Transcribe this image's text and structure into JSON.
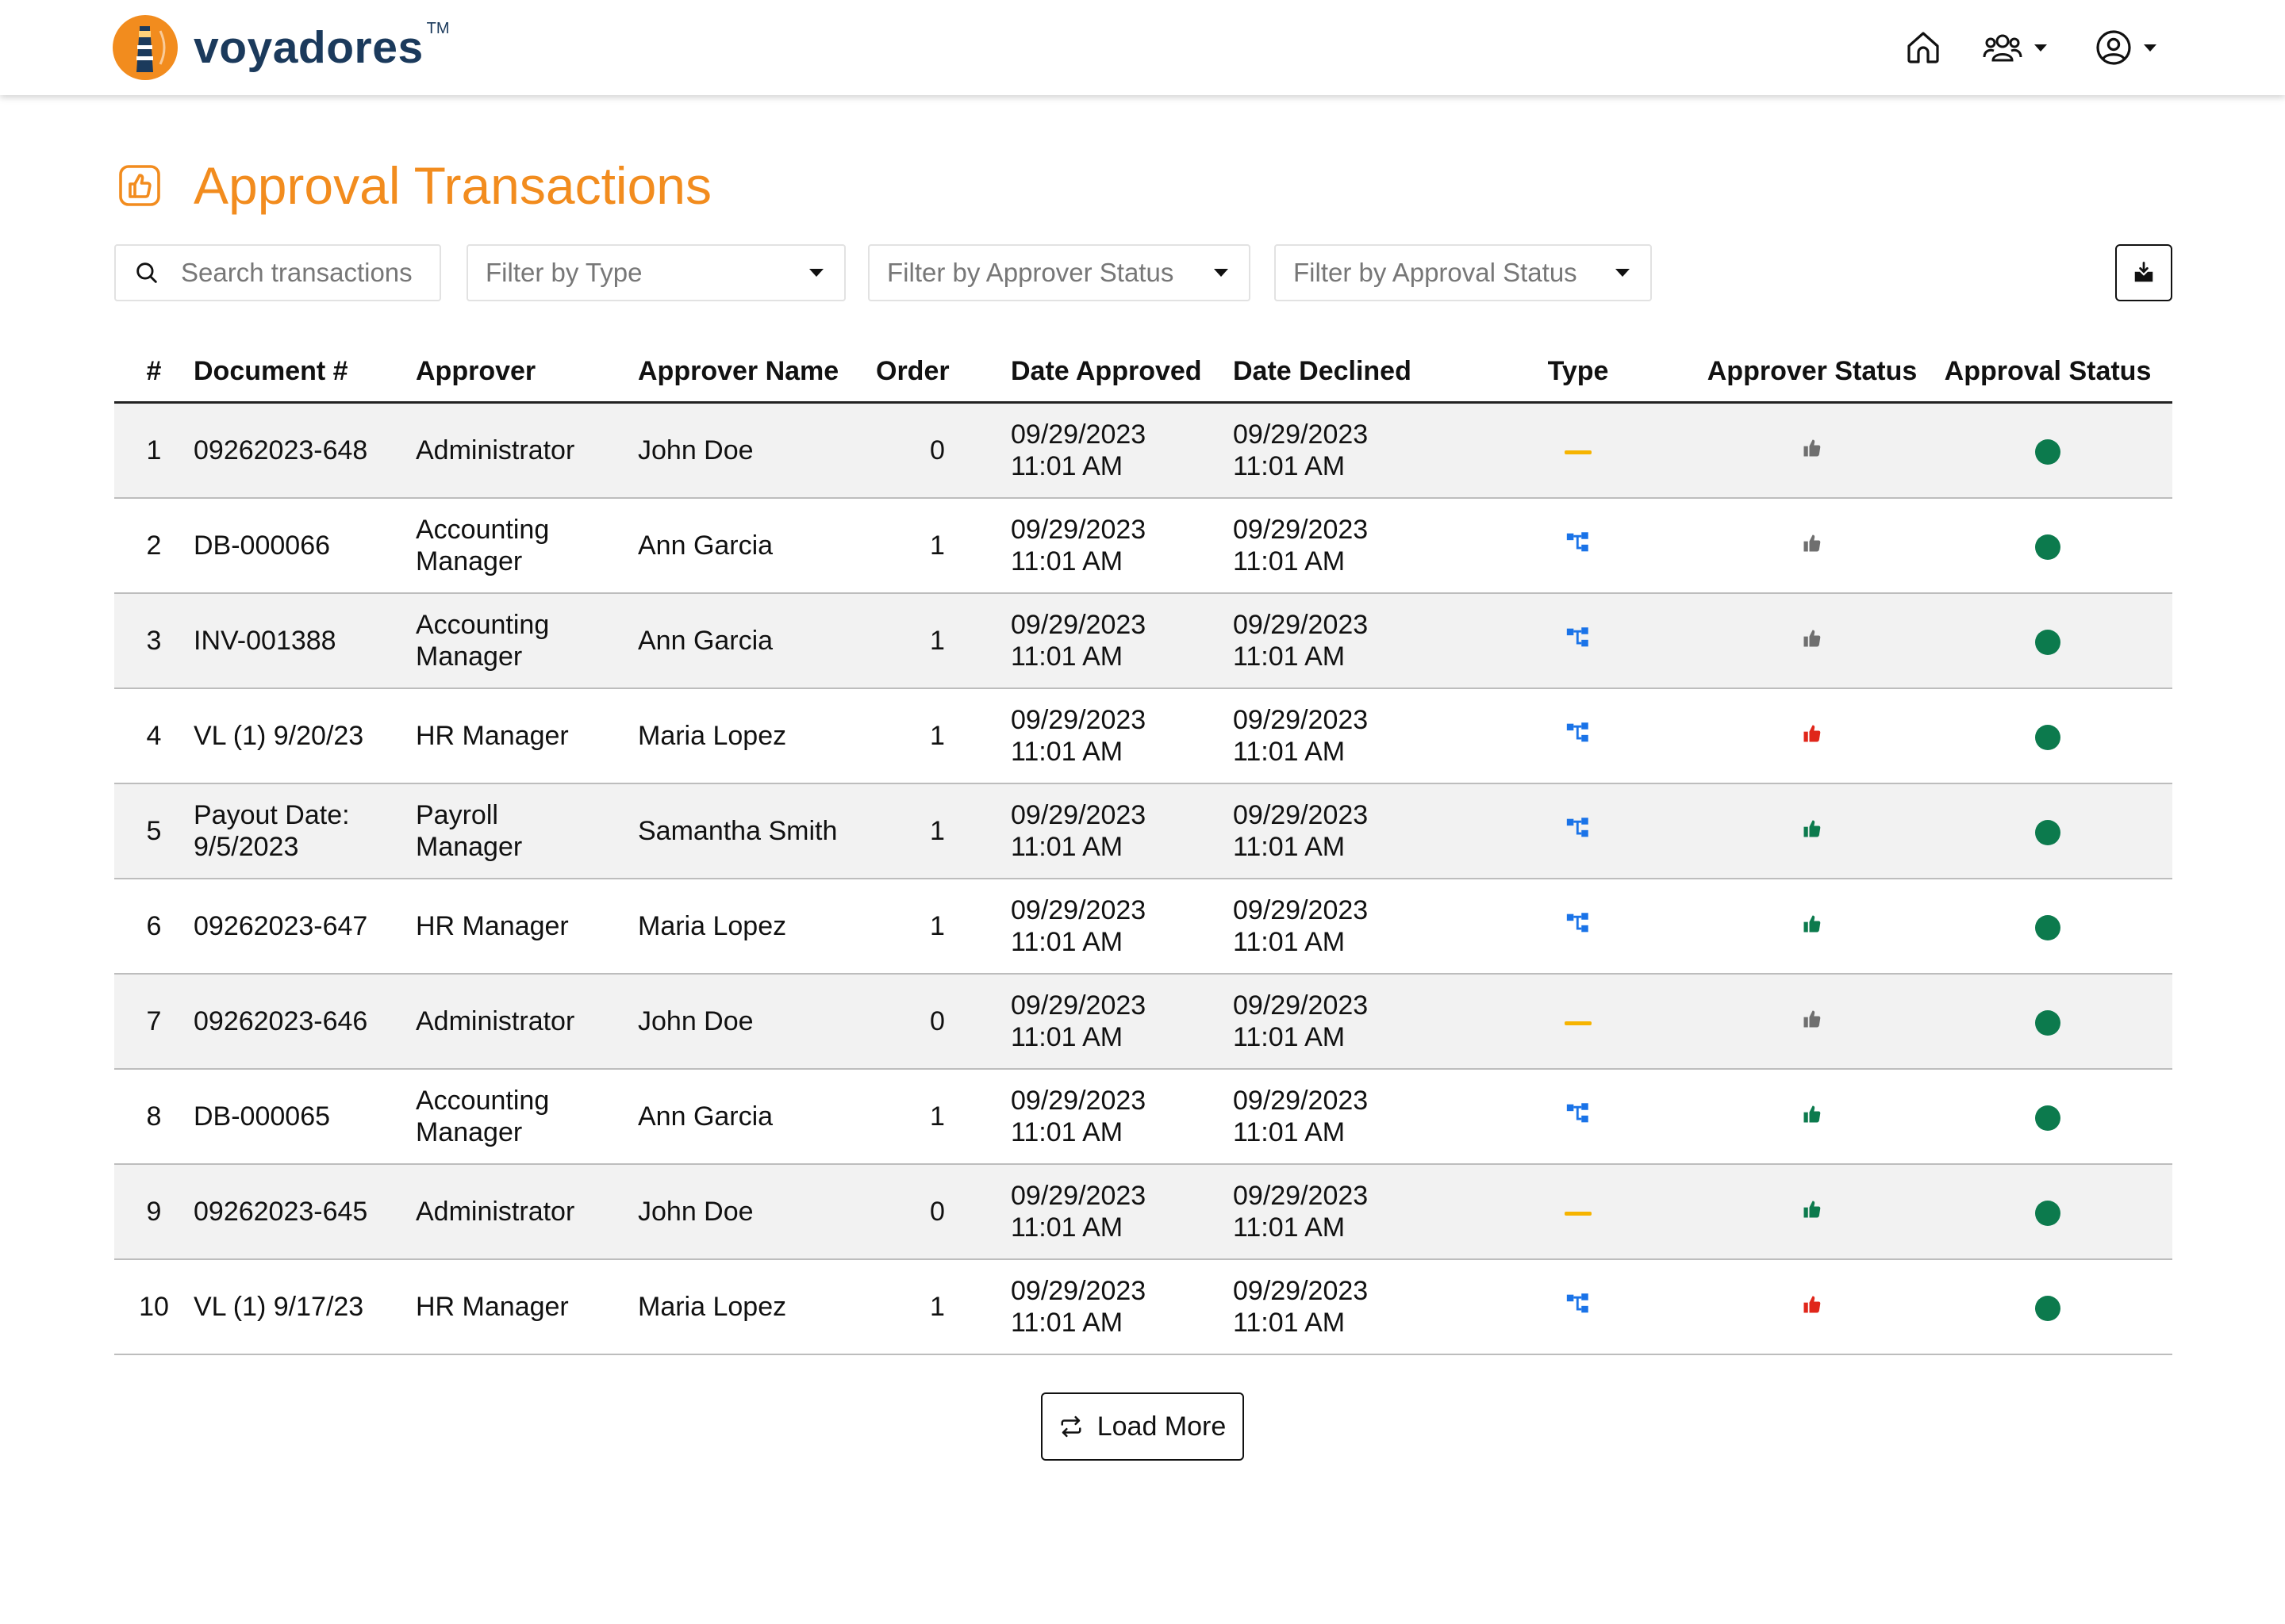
{
  "app": {
    "brand": "voyadores",
    "trademark": "TM"
  },
  "nav": {
    "icons": [
      "home-icon",
      "users-icon",
      "account-icon"
    ]
  },
  "page": {
    "title": "Approval Transactions"
  },
  "filters": {
    "search_placeholder": "Search transactions",
    "type_placeholder": "Filter by Type",
    "approver_status_placeholder": "Filter by Approver Status",
    "approval_status_placeholder": "Filter by Approval Status"
  },
  "table": {
    "headers": [
      "#",
      "Document #",
      "Approver",
      "Approver Name",
      "Order",
      "Date Approved",
      "Date Declined",
      "Type",
      "Approver Status",
      "Approval Status"
    ],
    "rows": [
      {
        "num": "1",
        "document": "09262023-648",
        "approver": "Administrator",
        "approver_name": "John Doe",
        "order": "0",
        "date_approved": "09/29/2023\n 11:01 AM",
        "date_declined": "09/29/2023\n11:01 AM",
        "type": "single",
        "approver_status": "pending"
      },
      {
        "num": "2",
        "document": "DB-000066",
        "approver": "Accounting\nManager",
        "approver_name": "Ann Garcia",
        "order": "1",
        "date_approved": "09/29/2023\n 11:01 AM",
        "date_declined": "09/29/2023\n11:01 AM",
        "type": "hierarchy",
        "approver_status": "pending"
      },
      {
        "num": "3",
        "document": "INV-001388",
        "approver": "Accounting\nManager",
        "approver_name": "Ann Garcia",
        "order": "1",
        "date_approved": "09/29/2023\n 11:01 AM",
        "date_declined": "09/29/2023\n11:01 AM",
        "type": "hierarchy",
        "approver_status": "pending"
      },
      {
        "num": "4",
        "document": "VL (1) 9/20/23",
        "approver": "HR Manager",
        "approver_name": "Maria Lopez",
        "order": "1",
        "date_approved": "09/29/2023\n 11:01 AM",
        "date_declined": "09/29/2023\n11:01 AM",
        "type": "hierarchy",
        "approver_status": "declined"
      },
      {
        "num": "5",
        "document": "Payout Date:\n 9/5/2023",
        "approver": "Payroll\nManager",
        "approver_name": "Samantha Smith",
        "order": "1",
        "date_approved": "09/29/2023\n 11:01 AM",
        "date_declined": "09/29/2023\n11:01 AM",
        "type": "hierarchy",
        "approver_status": "approved"
      },
      {
        "num": "6",
        "document": "09262023-647",
        "approver": "HR Manager",
        "approver_name": "Maria Lopez",
        "order": "1",
        "date_approved": "09/29/2023\n 11:01 AM",
        "date_declined": "09/29/2023\n11:01 AM",
        "type": "hierarchy",
        "approver_status": "approved"
      },
      {
        "num": "7",
        "document": "09262023-646",
        "approver": "Administrator",
        "approver_name": "John Doe",
        "order": "0",
        "date_approved": "09/29/2023\n 11:01 AM",
        "date_declined": "09/29/2023\n11:01 AM",
        "type": "single",
        "approver_status": "pending"
      },
      {
        "num": "8",
        "document": "DB-000065",
        "approver": "Accounting\nManager",
        "approver_name": "Ann Garcia",
        "order": "1",
        "date_approved": "09/29/2023\n 11:01 AM",
        "date_declined": "09/29/2023\n11:01 AM",
        "type": "hierarchy",
        "approver_status": "approved"
      },
      {
        "num": "9",
        "document": "09262023-645",
        "approver": "Administrator",
        "approver_name": "John Doe",
        "order": "0",
        "date_approved": "09/29/2023\n 11:01 AM",
        "date_declined": "09/29/2023\n11:01 AM",
        "type": "single",
        "approver_status": "approved"
      },
      {
        "num": "10",
        "document": "VL (1) 9/17/23",
        "approver": "HR Manager",
        "approver_name": "Maria Lopez",
        "order": "1",
        "date_approved": "09/29/2023\n 11:01 AM",
        "date_declined": "09/29/2023\n11:01 AM",
        "type": "hierarchy",
        "approver_status": "declined"
      }
    ]
  },
  "load_more_label": "Load More",
  "colors": {
    "accent": "#f28c1e",
    "brand": "#1b3a5c",
    "status_pending": "#6f6f6f",
    "status_approved": "#0c7a4d",
    "status_declined": "#e0261a",
    "type_hierarchy": "#1a73e8",
    "type_single": "#f6b400",
    "approval_dot": "#0c7a4d"
  }
}
